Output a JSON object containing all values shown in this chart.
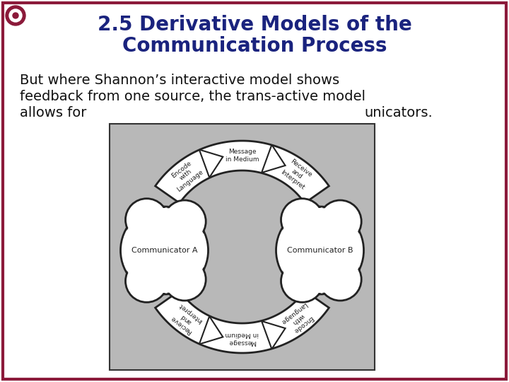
{
  "title_line1": "2.5 Derivative Models of the",
  "title_line2": "Communication Process",
  "title_color": "#1a237e",
  "title_fontsize": 20,
  "body_text_line1": "But where Shannon’s interactive model shows",
  "body_text_line2": "feedback from one source, the trans-active model",
  "body_text_line3": "allows for",
  "body_suffix": "unicators.",
  "body_fontsize": 14,
  "background_color": "#ffffff",
  "border_color": "#8b1a3a",
  "diagram_bg": "#b8b8b8",
  "diagram_border": "#333333",
  "comm_a_label": "Communicator A",
  "comm_b_label": "Communicator B",
  "ring_facecolor": "#ffffff",
  "ring_edgecolor": "#222222",
  "ring_lw": 2.0
}
